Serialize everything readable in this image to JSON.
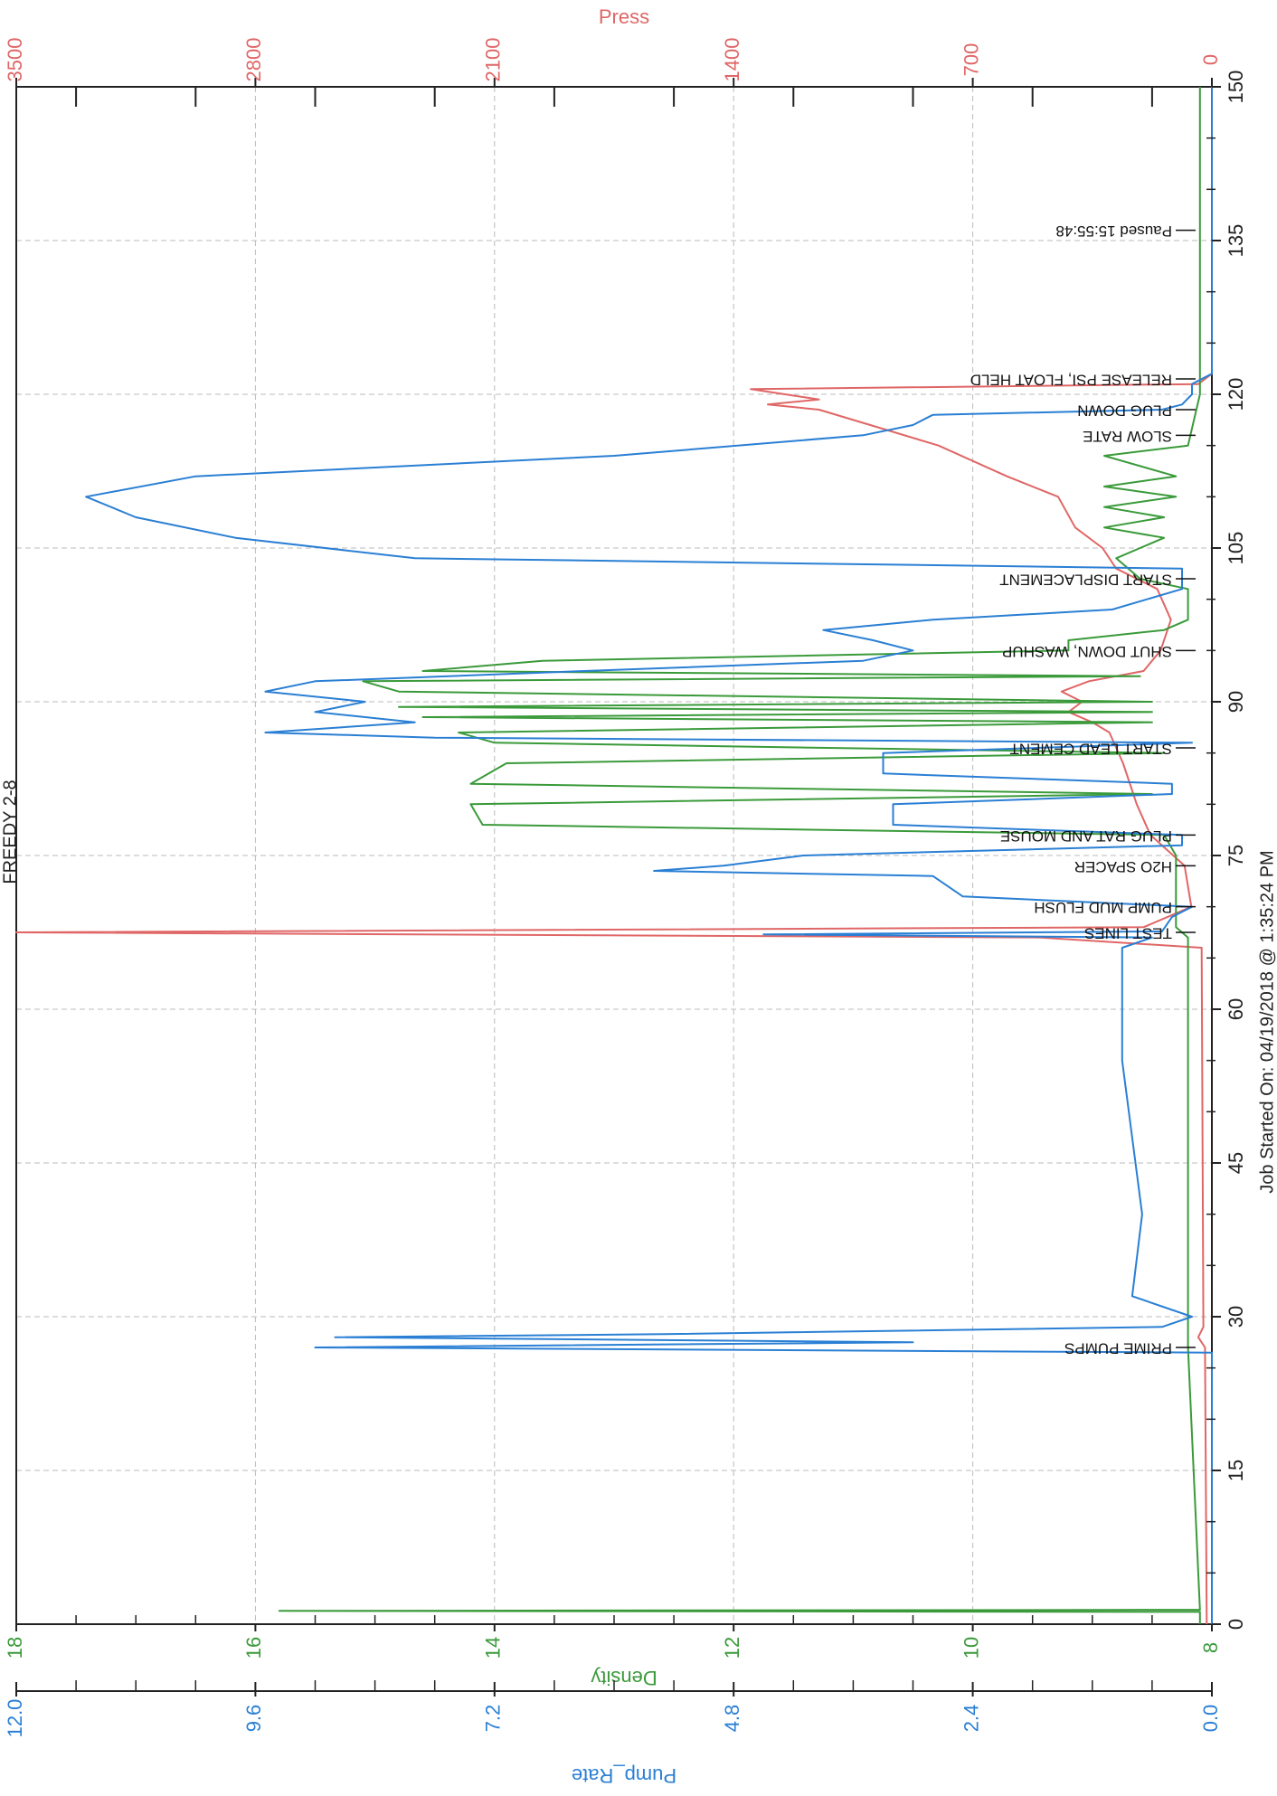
{
  "page": {
    "title": "FREEDY 2-8",
    "job_started": "Job Started On: 04/19/2018 @ 1:35:24 PM"
  },
  "axes": {
    "time": {
      "ticks": [
        "0",
        "15",
        "30",
        "45",
        "60",
        "75",
        "90",
        "105",
        "120",
        "135",
        "150"
      ]
    },
    "press": {
      "title": "Press",
      "ticks": [
        "0",
        "700",
        "1400",
        "2100",
        "2800",
        "3500"
      ],
      "color": "#e06666"
    },
    "density": {
      "title": "Density",
      "ticks": [
        "8",
        "10",
        "12",
        "14",
        "16",
        "18"
      ],
      "color": "#3a9a3a"
    },
    "pump_rate": {
      "title": "Pump_Rate",
      "ticks": [
        "0.0",
        "2.4",
        "4.8",
        "7.2",
        "9.6",
        "12.0"
      ],
      "color": "#2a7fd4"
    }
  },
  "chart_data": {
    "type": "line",
    "title": "FREEDY 2-8",
    "xlabel": "Job Started On: 04/19/2018 @ 1:35:24 PM",
    "xlim": [
      0,
      150
    ],
    "grid": true,
    "axes_y": {
      "Press": [
        0,
        3500
      ],
      "Density": [
        8,
        18
      ],
      "Pump_Rate": [
        0,
        12
      ]
    },
    "series": [
      {
        "name": "Press",
        "axis": "Press",
        "color": "#e06666",
        "points": [
          [
            0,
            15
          ],
          [
            27,
            20
          ],
          [
            28,
            40
          ],
          [
            29,
            25
          ],
          [
            66,
            30
          ],
          [
            67,
            500
          ],
          [
            67.5,
            3500
          ],
          [
            68,
            200
          ],
          [
            70,
            60
          ],
          [
            74,
            80
          ],
          [
            77,
            180
          ],
          [
            80,
            220
          ],
          [
            84,
            260
          ],
          [
            87,
            300
          ],
          [
            88,
            350
          ],
          [
            89,
            420
          ],
          [
            90,
            380
          ],
          [
            91,
            440
          ],
          [
            92,
            360
          ],
          [
            93,
            200
          ],
          [
            95,
            150
          ],
          [
            98,
            120
          ],
          [
            101,
            160
          ],
          [
            103,
            280
          ],
          [
            105,
            320
          ],
          [
            107,
            400
          ],
          [
            110,
            450
          ],
          [
            112,
            600
          ],
          [
            115,
            800
          ],
          [
            117,
            1000
          ],
          [
            118.5,
            1150
          ],
          [
            119,
            1300
          ],
          [
            119.5,
            1150
          ],
          [
            120,
            1250
          ],
          [
            120.5,
            1350
          ],
          [
            121,
            40
          ],
          [
            122,
            0
          ]
        ]
      },
      {
        "name": "Density",
        "axis": "Density",
        "color": "#3a9a3a",
        "points": [
          [
            0,
            8.1
          ],
          [
            1.2,
            8.1
          ],
          [
            1.3,
            15.8
          ],
          [
            1.4,
            8.1
          ],
          [
            27,
            8.2
          ],
          [
            67,
            8.2
          ],
          [
            68,
            8.3
          ],
          [
            75,
            8.3
          ],
          [
            77,
            8.4
          ],
          [
            78,
            14.1
          ],
          [
            80,
            14.2
          ],
          [
            81,
            8.5
          ],
          [
            82,
            14.2
          ],
          [
            84,
            13.9
          ],
          [
            85,
            8.4
          ],
          [
            86,
            14.0
          ],
          [
            87,
            14.3
          ],
          [
            88,
            8.5
          ],
          [
            88.5,
            14.6
          ],
          [
            89,
            8.5
          ],
          [
            89.5,
            14.8
          ],
          [
            90,
            8.5
          ],
          [
            91,
            14.8
          ],
          [
            92,
            15.1
          ],
          [
            92.5,
            8.6
          ],
          [
            93,
            14.6
          ],
          [
            94,
            13.6
          ],
          [
            95,
            9.2
          ],
          [
            96,
            9.2
          ],
          [
            97,
            8.4
          ],
          [
            98,
            8.2
          ],
          [
            101,
            8.2
          ],
          [
            102,
            8.6
          ],
          [
            104,
            8.8
          ],
          [
            106,
            8.4
          ],
          [
            107,
            8.9
          ],
          [
            108,
            8.4
          ],
          [
            109,
            8.9
          ],
          [
            110,
            8.3
          ],
          [
            111,
            8.9
          ],
          [
            112,
            8.3
          ],
          [
            114,
            8.9
          ],
          [
            115,
            8.2
          ],
          [
            120,
            8.1
          ],
          [
            150,
            8.1
          ]
        ]
      },
      {
        "name": "Pump_Rate",
        "axis": "Pump_Rate",
        "color": "#2a7fd4",
        "points": [
          [
            0,
            0
          ],
          [
            26.5,
            0
          ],
          [
            27,
            9.0
          ],
          [
            27.5,
            3.0
          ],
          [
            28,
            8.8
          ],
          [
            28.3,
            5.5
          ],
          [
            29,
            0.5
          ],
          [
            30,
            0.2
          ],
          [
            32,
            0.8
          ],
          [
            40,
            0.7
          ],
          [
            55,
            0.9
          ],
          [
            66,
            0.9
          ],
          [
            67,
            0.6
          ],
          [
            67.3,
            4.5
          ],
          [
            67.6,
            0.5
          ],
          [
            69,
            0.4
          ],
          [
            70,
            0.2
          ],
          [
            71,
            2.5
          ],
          [
            73,
            2.8
          ],
          [
            73.5,
            5.6
          ],
          [
            74,
            4.9
          ],
          [
            75,
            4.1
          ],
          [
            76,
            0.3
          ],
          [
            77,
            0.3
          ],
          [
            78,
            3.2
          ],
          [
            80,
            3.2
          ],
          [
            81,
            0.4
          ],
          [
            82,
            0.4
          ],
          [
            83,
            3.3
          ],
          [
            85,
            3.3
          ],
          [
            86,
            0.2
          ],
          [
            86.5,
            7.8
          ],
          [
            87,
            9.5
          ],
          [
            88,
            8.0
          ],
          [
            89,
            9.0
          ],
          [
            90,
            8.5
          ],
          [
            91,
            9.5
          ],
          [
            92,
            9.0
          ],
          [
            93,
            6.3
          ],
          [
            94,
            3.5
          ],
          [
            95,
            3.0
          ],
          [
            96,
            3.4
          ],
          [
            97,
            3.9
          ],
          [
            98,
            2.8
          ],
          [
            99,
            1.0
          ],
          [
            101,
            0.3
          ],
          [
            103,
            0.3
          ],
          [
            104,
            8.0
          ],
          [
            106,
            9.8
          ],
          [
            108,
            10.8
          ],
          [
            110,
            11.3
          ],
          [
            112,
            10.2
          ],
          [
            114,
            6.0
          ],
          [
            116,
            3.5
          ],
          [
            117,
            3.0
          ],
          [
            118,
            2.8
          ],
          [
            118.5,
            0.5
          ],
          [
            119,
            0.3
          ],
          [
            120,
            0.2
          ],
          [
            121,
            0.2
          ],
          [
            122,
            0
          ],
          [
            150,
            0
          ]
        ]
      }
    ],
    "events": [
      {
        "time": 27,
        "label": "PRIME PUMPS"
      },
      {
        "time": 67.5,
        "label": "TEST LINES"
      },
      {
        "time": 70,
        "label": "PUMP MUD FLUSH"
      },
      {
        "time": 74,
        "label": "H2O SPACER"
      },
      {
        "time": 77,
        "label": "PLUG RAT AND MOUSE"
      },
      {
        "time": 85.5,
        "label": "START LEAD CEMENT"
      },
      {
        "time": 95,
        "label": "SHUT DOWN, WASHUP"
      },
      {
        "time": 102,
        "label": "START DISPLACEMENT"
      },
      {
        "time": 116,
        "label": "SLOW RATE"
      },
      {
        "time": 118.5,
        "label": "PLUG DOWN"
      },
      {
        "time": 121.5,
        "label": "RELEASE PSI, FLOAT HELD"
      },
      {
        "time": 136,
        "label": "Paused 15:55:48"
      }
    ]
  }
}
